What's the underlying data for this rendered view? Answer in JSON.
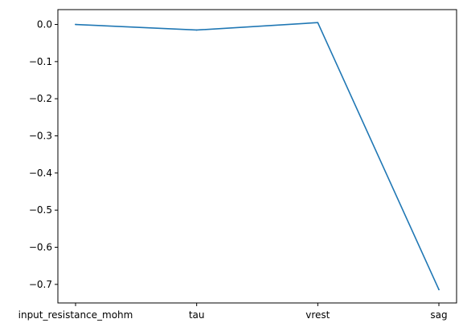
{
  "chart_data": {
    "type": "line",
    "categories": [
      "input_resistance_mohm",
      "tau",
      "vrest",
      "sag"
    ],
    "series": [
      {
        "values": [
          0.0,
          -0.015,
          0.005,
          -0.714
        ],
        "color": "#1f77b4"
      }
    ],
    "title": "",
    "xlabel": "",
    "ylabel": "",
    "ylim": [
      -0.75,
      0.04
    ],
    "yticks": [
      0.0,
      -0.1,
      -0.2,
      -0.3,
      -0.4,
      -0.5,
      -0.6,
      -0.7
    ],
    "ytick_labels": [
      "0.0",
      "−0.1",
      "−0.2",
      "−0.3",
      "−0.4",
      "−0.5",
      "−0.6",
      "−0.7"
    ],
    "grid": false,
    "legend": false
  }
}
